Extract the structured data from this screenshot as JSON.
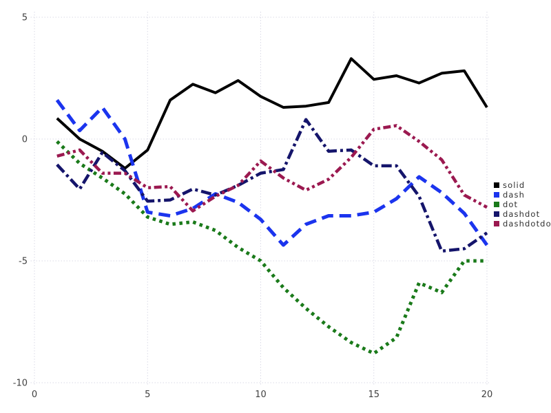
{
  "chart_data": {
    "type": "line",
    "title": "",
    "xlabel": "",
    "ylabel": "",
    "x": [
      1,
      2,
      3,
      4,
      5,
      6,
      7,
      8,
      9,
      10,
      11,
      12,
      13,
      14,
      15,
      16,
      17,
      18,
      19,
      20
    ],
    "series": [
      {
        "name": "solid",
        "color": "#000000",
        "dash_style": "solid",
        "values": [
          0.85,
          0.0,
          -0.5,
          -1.2,
          -0.45,
          1.6,
          2.25,
          1.9,
          2.4,
          1.75,
          1.3,
          1.35,
          1.5,
          3.3,
          2.45,
          2.6,
          2.3,
          2.7,
          2.8,
          1.3
        ]
      },
      {
        "name": "dash",
        "color": "#1b34ee",
        "dash_style": "dash",
        "values": [
          1.6,
          0.35,
          1.3,
          0.0,
          -3.0,
          -3.15,
          -2.85,
          -2.25,
          -2.6,
          -3.3,
          -4.35,
          -3.5,
          -3.15,
          -3.15,
          -3.0,
          -2.45,
          -1.55,
          -2.2,
          -3.05,
          -4.35
        ]
      },
      {
        "name": "dot",
        "color": "#1a7a1a",
        "dash_style": "dot",
        "values": [
          -0.1,
          -1.0,
          -1.6,
          -2.25,
          -3.2,
          -3.5,
          -3.4,
          -3.75,
          -4.45,
          -5.0,
          -6.1,
          -6.95,
          -7.7,
          -8.35,
          -8.8,
          -8.15,
          -5.9,
          -6.3,
          -5.0,
          -5.0
        ]
      },
      {
        "name": "dashdot",
        "color": "#15156b",
        "dash_style": "dashdot",
        "values": [
          -1.05,
          -2.05,
          -0.55,
          -1.3,
          -2.55,
          -2.5,
          -2.05,
          -2.3,
          -1.9,
          -1.4,
          -1.25,
          0.8,
          -0.5,
          -0.45,
          -1.1,
          -1.1,
          -2.35,
          -4.6,
          -4.5,
          -3.85
        ]
      },
      {
        "name": "dashdotdot",
        "color": "#9b1950",
        "dash_style": "dashdotdot",
        "values": [
          -0.7,
          -0.45,
          -1.4,
          -1.4,
          -2.0,
          -1.95,
          -2.95,
          -2.35,
          -1.9,
          -0.9,
          -1.6,
          -2.1,
          -1.65,
          -0.75,
          0.4,
          0.55,
          -0.1,
          -0.85,
          -2.3,
          -2.8
        ]
      }
    ],
    "x_ticks": [
      0,
      5,
      10,
      15,
      20
    ],
    "y_ticks": [
      5,
      0,
      -5,
      -10
    ],
    "x_tick_labels": [
      "0",
      "5",
      "10",
      "15",
      "20"
    ],
    "y_tick_labels": [
      "5",
      "0",
      "-5",
      "-10"
    ],
    "xlim": [
      0,
      20
    ],
    "ylim": [
      -10,
      5
    ],
    "grid": true,
    "legend_position": "right",
    "legend_entries": [
      "solid",
      "dash",
      "dot",
      "dashdot",
      "dashdotdot"
    ]
  },
  "colors": {
    "background": "#ffffff",
    "grid": "#d9d9e6",
    "tick_label": "#404040",
    "legend_text": "#303030"
  }
}
